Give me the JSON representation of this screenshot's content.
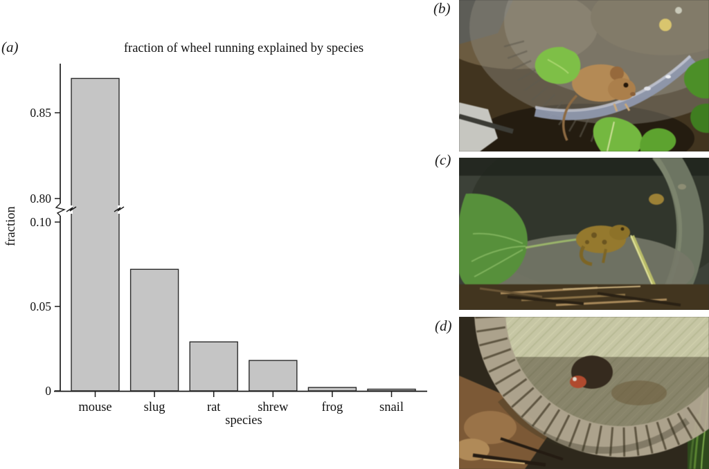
{
  "figure": {
    "panels": {
      "a": "(a)",
      "b": "(b)",
      "c": "(c)",
      "d": "(d)"
    }
  },
  "chart_data": {
    "type": "bar",
    "title": "fraction of wheel running explained by species",
    "xlabel": "species",
    "ylabel": "fraction",
    "categories": [
      "mouse",
      "slug",
      "rat",
      "shrew",
      "frog",
      "snail"
    ],
    "values": [
      0.87,
      0.072,
      0.029,
      0.018,
      0.002,
      0.001
    ],
    "yticks": [
      {
        "value": 0,
        "label": "0"
      },
      {
        "value": 0.05,
        "label": "0.05"
      },
      {
        "value": 0.1,
        "label": "0.10"
      },
      {
        "value": 0.8,
        "label": "0.80"
      },
      {
        "value": 0.85,
        "label": "0.85"
      }
    ],
    "axis_break": {
      "between": [
        0.1,
        0.8
      ],
      "style": "zigzag",
      "marks_on_first_bar": true
    },
    "ylim_lower": [
      0,
      0.105
    ],
    "ylim_upper": [
      0.796,
      0.879
    ],
    "grid": false,
    "legend": false,
    "bar_color": "#c5c5c5",
    "bar_border": "#2a2a2a",
    "axis_color": "#1a1a1a"
  },
  "photos": [
    {
      "id": "b",
      "description": "wood mouse running inside a transparent plastic wheel surrounded by green ivy leaves over dark soil",
      "palette": [
        "#473a26",
        "#b48a55",
        "#8f98ad",
        "#74b840"
      ]
    },
    {
      "id": "c",
      "description": "frog sitting at the opening of a dark running wheel beside a large green leaf, twigs below and a pale straw diagonal",
      "palette": [
        "#3c4138",
        "#57903b",
        "#95792e",
        "#bec06c"
      ]
    },
    {
      "id": "d",
      "description": "close-up of a ribbed translucent running wheel with a small red-shelled snail inside, forest soil at left and grass at right",
      "palette": [
        "#b3a992",
        "#c6c6a4",
        "#7c5936",
        "#3d5c22"
      ]
    }
  ]
}
